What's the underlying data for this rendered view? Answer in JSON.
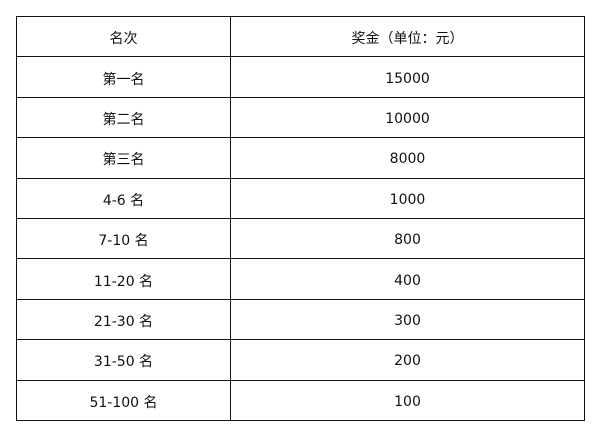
{
  "table": {
    "headers": [
      "名次",
      "奖金（单位：元）"
    ],
    "rows": [
      [
        "第一名",
        "15000"
      ],
      [
        "第二名",
        "10000"
      ],
      [
        "第三名",
        "8000"
      ],
      [
        "4-6 名",
        "1000"
      ],
      [
        "7-10 名",
        "800"
      ],
      [
        "11-20 名",
        "400"
      ],
      [
        "21-30 名",
        "300"
      ],
      [
        "31-50 名",
        "200"
      ],
      [
        "51-100 名",
        "100"
      ]
    ]
  }
}
